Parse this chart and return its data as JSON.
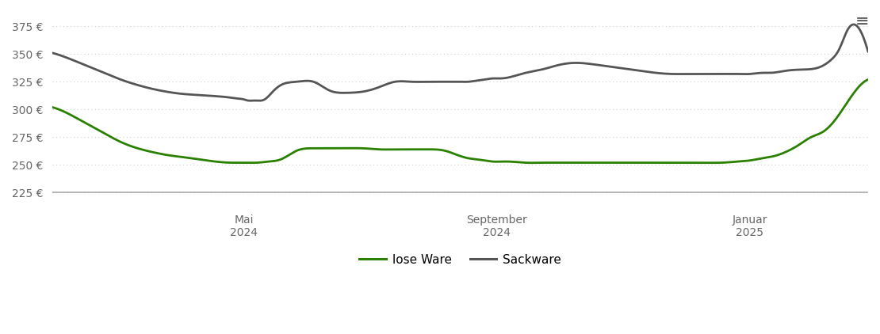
{
  "background_color": "#ffffff",
  "plot_bg_color": "#ffffff",
  "grid_color": "#d0d0d0",
  "ymin": 215,
  "ymax": 388,
  "yticks": [
    225,
    250,
    275,
    300,
    325,
    350,
    375
  ],
  "x_tick_labels": [
    "Mai\n2024",
    "September\n2024",
    "Januar\n2025"
  ],
  "x_tick_pos": [
    0.235,
    0.545,
    0.855
  ],
  "lose_ware_color": "#2a8000",
  "sackware_color": "#555555",
  "line_width": 2.0,
  "legend_labels": [
    "lose Ware",
    "Sackware"
  ],
  "hamburger_icon": "≡",
  "lose_ware_x": [
    0.0,
    0.02,
    0.04,
    0.06,
    0.08,
    0.1,
    0.12,
    0.14,
    0.16,
    0.18,
    0.2,
    0.22,
    0.235,
    0.25,
    0.265,
    0.28,
    0.3,
    0.32,
    0.34,
    0.36,
    0.38,
    0.4,
    0.42,
    0.44,
    0.46,
    0.48,
    0.5,
    0.51,
    0.52,
    0.53,
    0.54,
    0.55,
    0.56,
    0.58,
    0.6,
    0.62,
    0.64,
    0.66,
    0.68,
    0.7,
    0.72,
    0.74,
    0.76,
    0.78,
    0.8,
    0.82,
    0.84,
    0.855,
    0.87,
    0.885,
    0.9,
    0.915,
    0.93,
    0.945,
    0.96,
    0.975,
    1.0
  ],
  "lose_ware_y": [
    302,
    296,
    288,
    280,
    272,
    266,
    262,
    259,
    257,
    255,
    253,
    252,
    252,
    252,
    253,
    255,
    263,
    265,
    265,
    265,
    265,
    264,
    264,
    264,
    264,
    263,
    258,
    256,
    255,
    254,
    253,
    253,
    253,
    252,
    252,
    252,
    252,
    252,
    252,
    252,
    252,
    252,
    252,
    252,
    252,
    252,
    253,
    254,
    256,
    258,
    262,
    268,
    275,
    280,
    291,
    307,
    327
  ],
  "sackware_x": [
    0.0,
    0.02,
    0.04,
    0.06,
    0.08,
    0.1,
    0.12,
    0.14,
    0.16,
    0.18,
    0.2,
    0.215,
    0.225,
    0.235,
    0.24,
    0.245,
    0.25,
    0.26,
    0.27,
    0.28,
    0.3,
    0.32,
    0.34,
    0.36,
    0.38,
    0.4,
    0.42,
    0.44,
    0.46,
    0.48,
    0.5,
    0.51,
    0.52,
    0.53,
    0.54,
    0.545,
    0.55,
    0.56,
    0.57,
    0.58,
    0.6,
    0.62,
    0.64,
    0.66,
    0.68,
    0.7,
    0.72,
    0.74,
    0.76,
    0.78,
    0.8,
    0.82,
    0.84,
    0.855,
    0.87,
    0.88,
    0.9,
    0.92,
    0.94,
    0.955,
    0.965,
    0.975,
    0.985,
    1.0
  ],
  "sackware_y": [
    351,
    346,
    340,
    334,
    328,
    323,
    319,
    316,
    314,
    313,
    312,
    311,
    310,
    309,
    308,
    308,
    308,
    309,
    316,
    322,
    325,
    325,
    317,
    315,
    316,
    320,
    325,
    325,
    325,
    325,
    325,
    325,
    326,
    327,
    328,
    328,
    328,
    329,
    331,
    333,
    336,
    340,
    342,
    341,
    339,
    337,
    335,
    333,
    332,
    332,
    332,
    332,
    332,
    332,
    333,
    333,
    335,
    336,
    338,
    345,
    355,
    372,
    376,
    352
  ]
}
